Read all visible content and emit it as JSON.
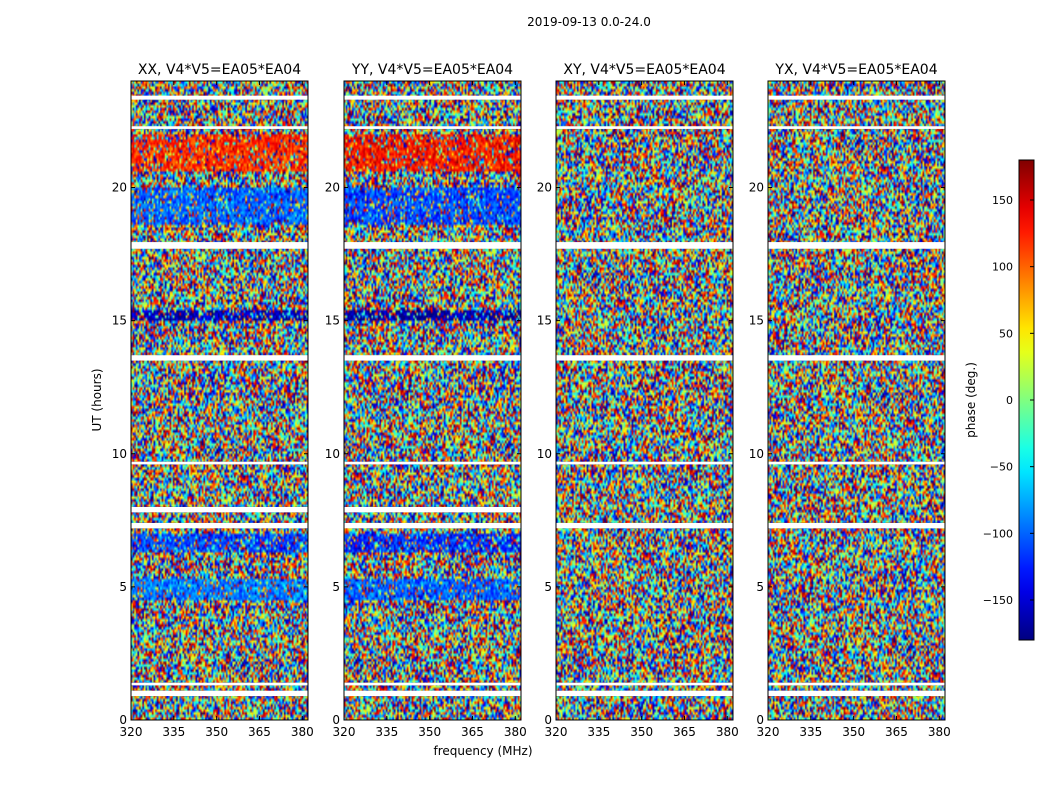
{
  "figure": {
    "suptitle": "2019-09-13 0.0-24.0",
    "xlabel": "frequency (MHz)",
    "ylabel": "UT (hours)",
    "colorbar_label": "phase (deg.)",
    "colorbar_ticks": [
      150,
      100,
      50,
      0,
      -50,
      -100,
      -150
    ],
    "colorbar_range": [
      -180,
      180
    ],
    "colormap": "jet"
  },
  "chart_data": [
    {
      "type": "heatmap",
      "title": "XX, V4*V5=EA05*EA04",
      "xlabel": "frequency (MHz)",
      "ylabel": "UT (hours)",
      "xlim": [
        320,
        382
      ],
      "ylim": [
        0,
        24
      ],
      "x_ticks": [
        320,
        335,
        350,
        365,
        380
      ],
      "y_ticks": [
        0,
        5,
        10,
        15,
        20
      ],
      "value": "phase (deg.)",
      "value_range": [
        -180,
        180
      ],
      "coherent_bands": [
        {
          "ut": [
            15.05,
            15.4
          ],
          "phase": -160
        },
        {
          "ut": [
            4.5,
            5.3
          ],
          "phase": -90
        },
        {
          "ut": [
            6.3,
            7.0
          ],
          "phase": -110
        },
        {
          "ut": [
            20.6,
            22.0
          ],
          "phase": 120
        },
        {
          "ut": [
            18.6,
            20.0
          ],
          "phase": -100
        }
      ],
      "flagged_ut": [
        [
          0.9,
          1.1
        ],
        [
          1.3,
          1.4
        ],
        [
          7.2,
          7.4
        ],
        [
          7.8,
          8.0
        ],
        [
          9.6,
          9.7
        ],
        [
          13.5,
          13.7
        ],
        [
          17.7,
          17.95
        ],
        [
          22.2,
          22.3
        ],
        [
          23.3,
          23.45
        ]
      ]
    },
    {
      "type": "heatmap",
      "title": "YY, V4*V5=EA05*EA04",
      "xlabel": "frequency (MHz)",
      "ylabel": "UT (hours)",
      "xlim": [
        320,
        382
      ],
      "ylim": [
        0,
        24
      ],
      "x_ticks": [
        320,
        335,
        350,
        365,
        380
      ],
      "y_ticks": [
        0,
        5,
        10,
        15,
        20
      ],
      "value": "phase (deg.)",
      "value_range": [
        -180,
        180
      ],
      "coherent_bands": [
        {
          "ut": [
            15.05,
            15.4
          ],
          "phase": -170
        },
        {
          "ut": [
            4.5,
            5.3
          ],
          "phase": -100
        },
        {
          "ut": [
            6.3,
            7.0
          ],
          "phase": -120
        },
        {
          "ut": [
            20.6,
            22.0
          ],
          "phase": 130
        },
        {
          "ut": [
            18.6,
            20.0
          ],
          "phase": -110
        }
      ],
      "flagged_ut": [
        [
          0.9,
          1.1
        ],
        [
          1.3,
          1.4
        ],
        [
          7.2,
          7.4
        ],
        [
          7.8,
          8.0
        ],
        [
          9.6,
          9.7
        ],
        [
          13.5,
          13.7
        ],
        [
          17.7,
          17.95
        ],
        [
          22.2,
          22.3
        ],
        [
          23.3,
          23.45
        ]
      ]
    },
    {
      "type": "heatmap",
      "title": "XY, V4*V5=EA05*EA04",
      "xlabel": "frequency (MHz)",
      "ylabel": "UT (hours)",
      "xlim": [
        320,
        382
      ],
      "ylim": [
        0,
        24
      ],
      "x_ticks": [
        320,
        335,
        350,
        365,
        380
      ],
      "y_ticks": [
        0,
        5,
        10,
        15,
        20
      ],
      "value": "phase (deg.)",
      "value_range": [
        -180,
        180
      ],
      "coherent_bands": [],
      "flagged_ut": [
        [
          0.9,
          1.1
        ],
        [
          1.3,
          1.4
        ],
        [
          7.2,
          7.4
        ],
        [
          9.6,
          9.7
        ],
        [
          13.5,
          13.7
        ],
        [
          17.7,
          17.95
        ],
        [
          22.2,
          22.3
        ],
        [
          23.3,
          23.45
        ]
      ]
    },
    {
      "type": "heatmap",
      "title": "YX, V4*V5=EA05*EA04",
      "xlabel": "frequency (MHz)",
      "ylabel": "UT (hours)",
      "xlim": [
        320,
        382
      ],
      "ylim": [
        0,
        24
      ],
      "x_ticks": [
        320,
        335,
        350,
        365,
        380
      ],
      "y_ticks": [
        0,
        5,
        10,
        15,
        20
      ],
      "value": "phase (deg.)",
      "value_range": [
        -180,
        180
      ],
      "coherent_bands": [],
      "flagged_ut": [
        [
          0.9,
          1.1
        ],
        [
          1.3,
          1.4
        ],
        [
          7.2,
          7.4
        ],
        [
          9.6,
          9.7
        ],
        [
          13.5,
          13.7
        ],
        [
          17.7,
          17.95
        ],
        [
          22.2,
          22.3
        ],
        [
          23.3,
          23.45
        ]
      ]
    }
  ]
}
